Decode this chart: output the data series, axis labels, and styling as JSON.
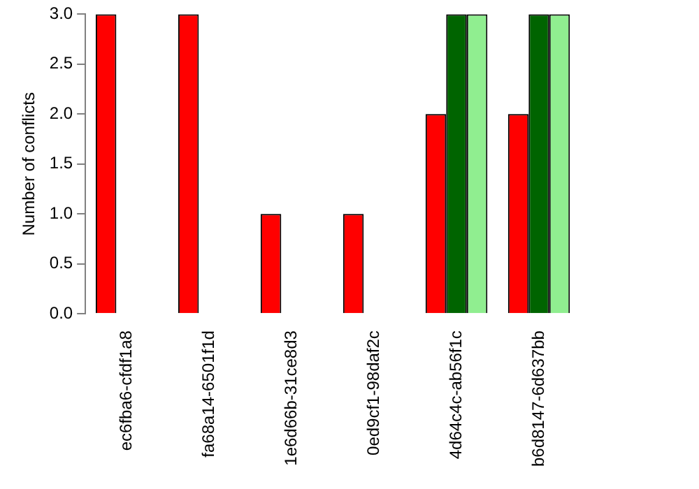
{
  "chart_data": {
    "type": "bar",
    "ylabel": "Number of conflicts",
    "categories": [
      "ec6fba6-cfdf1a8",
      "fa68a14-6501f1d",
      "1e6d66b-31ce8d3",
      "0ed9cf1-98daf2c",
      "4d64c4c-ab56f1c",
      "b6d8147-6d637bb"
    ],
    "series": [
      {
        "color": "#ff0000",
        "values": [
          3,
          3,
          1,
          1,
          2,
          2
        ]
      },
      {
        "color": "#006400",
        "values": [
          0,
          0,
          0,
          0,
          3,
          3
        ]
      },
      {
        "color": "#90ee90",
        "values": [
          0,
          0,
          0,
          0,
          3,
          3
        ]
      }
    ],
    "ylim": [
      0,
      3
    ],
    "yticks": [
      {
        "value": 0,
        "label": "0.0"
      },
      0.5,
      {
        "value": 1,
        "label": "1.0"
      },
      1.5,
      {
        "value": 2,
        "label": "2.0"
      },
      2.5,
      {
        "value": 3,
        "label": "3.0"
      }
    ],
    "grid": false,
    "legend": false
  }
}
